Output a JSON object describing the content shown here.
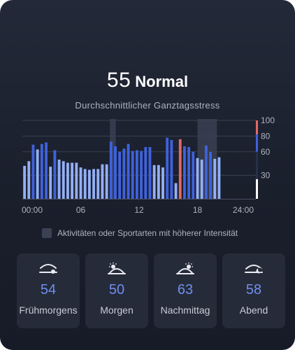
{
  "summary": {
    "score": "55",
    "level": "Normal",
    "subtitle": "Durchschnittlicher Ganztagsstress"
  },
  "chart_data": {
    "type": "bar",
    "x_tick_labels": [
      "00:00",
      "06",
      "12",
      "18",
      "24:00"
    ],
    "y_tick_labels": [
      "100",
      "80",
      "60",
      "30"
    ],
    "ylim": [
      0,
      100
    ],
    "highlight_ranges_hours": [
      [
        9,
        9.6
      ],
      [
        18,
        20
      ]
    ],
    "colors": {
      "normal": "#93aff6",
      "medium": "#3e62dd",
      "high": "#e36868"
    },
    "values": [
      42,
      48,
      69,
      63,
      70,
      72,
      41,
      62,
      50,
      48,
      46,
      46,
      46,
      40,
      38,
      37,
      38,
      38,
      44,
      44,
      73,
      67,
      60,
      64,
      70,
      61,
      62,
      61,
      66,
      66,
      43,
      43,
      40,
      78,
      75,
      20,
      76,
      67,
      66,
      60,
      52,
      50,
      68,
      60,
      51,
      53,
      0,
      0,
      0,
      0,
      0,
      0,
      0,
      0
    ],
    "bar_levels": [
      "n",
      "n",
      "m",
      "n",
      "m",
      "m",
      "n",
      "m",
      "n",
      "n",
      "n",
      "n",
      "n",
      "n",
      "n",
      "n",
      "n",
      "n",
      "n",
      "n",
      "m",
      "m",
      "m",
      "m",
      "m",
      "m",
      "m",
      "m",
      "m",
      "m",
      "n",
      "n",
      "n",
      "m",
      "m",
      "n",
      "h",
      "m",
      "m",
      "m",
      "n",
      "n",
      "m",
      "m",
      "n",
      "n",
      "n",
      "n",
      "n",
      "n",
      "n",
      "n",
      "n",
      "n"
    ],
    "gridlines": [
      100,
      80,
      60,
      30
    ],
    "grid": true
  },
  "legend": {
    "text": "Aktivitäten oder Sportarten mit höherer Intensität"
  },
  "periods": [
    {
      "icon": "early-morning-icon",
      "value": "54",
      "label": "Frühmorgens"
    },
    {
      "icon": "morning-sun-icon",
      "value": "50",
      "label": "Morgen"
    },
    {
      "icon": "afternoon-sun-icon",
      "value": "63",
      "label": "Nachmittag"
    },
    {
      "icon": "evening-moon-icon",
      "value": "58",
      "label": "Abend"
    }
  ]
}
